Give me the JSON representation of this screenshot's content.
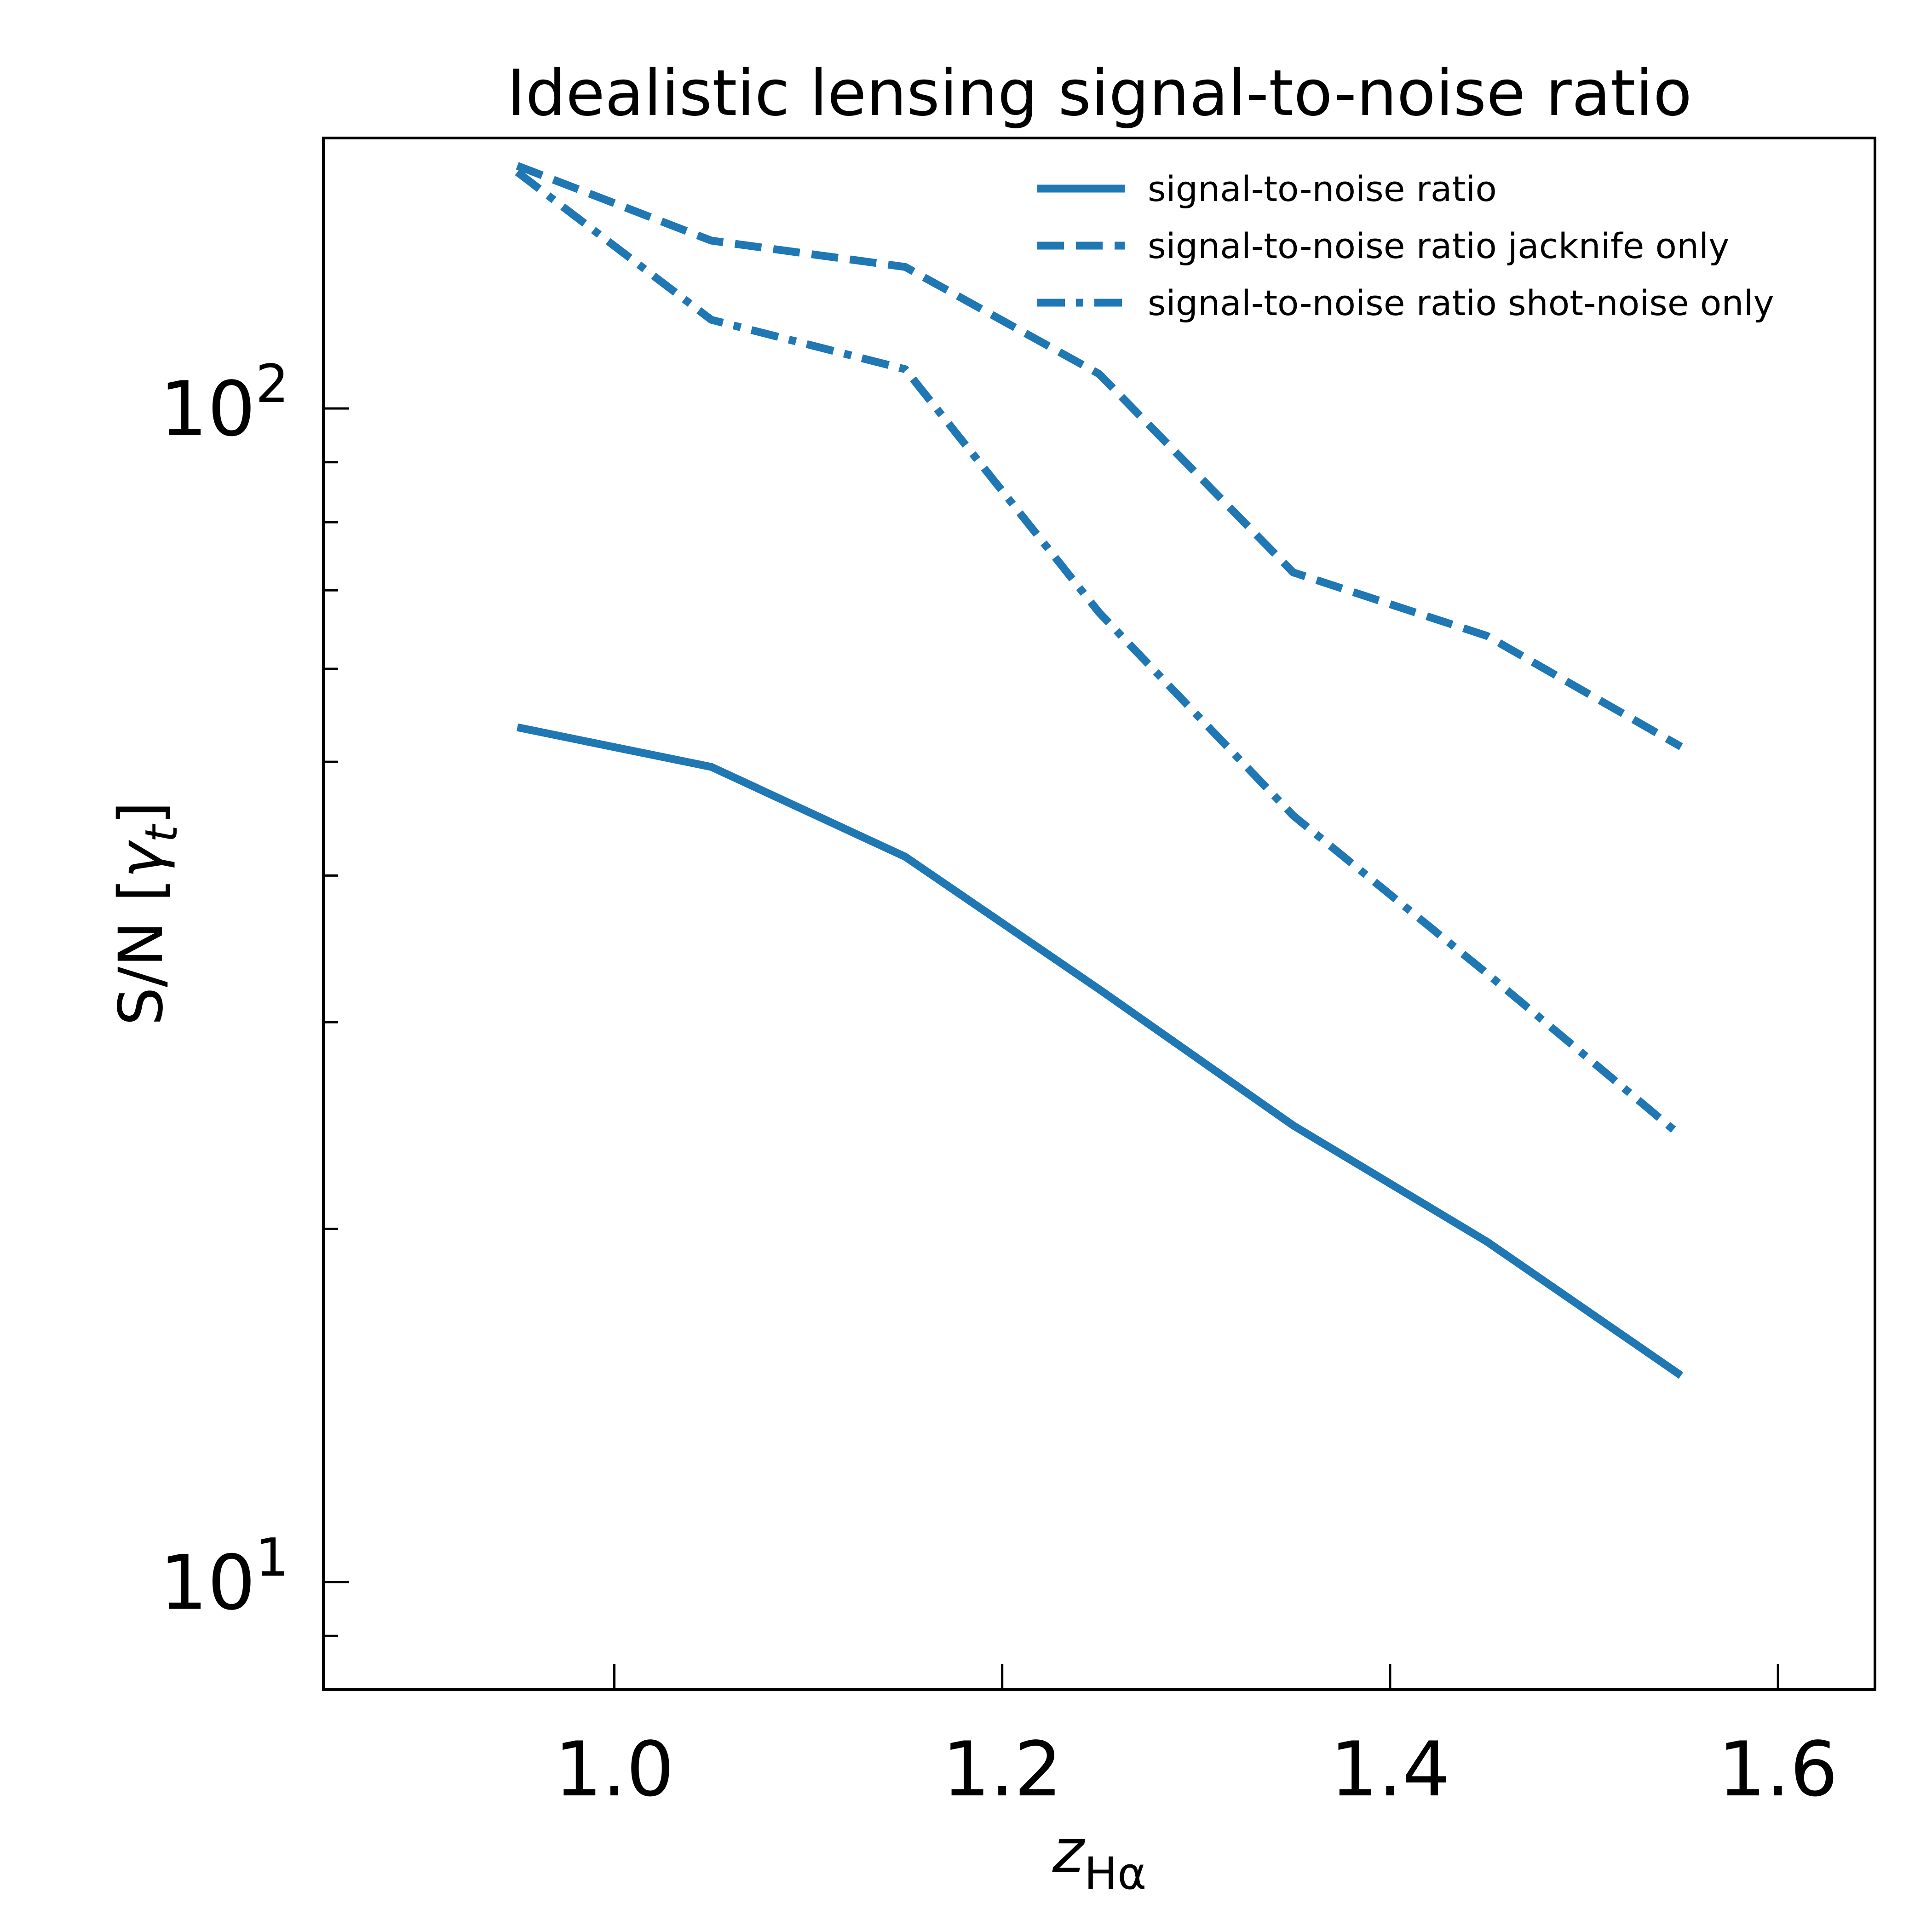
{
  "chart_data": {
    "type": "line",
    "title": "Idealistic lensing signal-to-noise ratio",
    "xlabel": "z",
    "xlabel_subscript": "Hα",
    "ylabel": "S/N [",
    "ylabel_symbol": "γ",
    "ylabel_symbol_subscript": "t",
    "ylabel_suffix": "]",
    "xlim": [
      0.85,
      1.65
    ],
    "ylim": [
      8.1,
      170
    ],
    "yscale": "log",
    "xticks": [
      1.0,
      1.2,
      1.4,
      1.6
    ],
    "xtick_labels": [
      "1.0",
      "1.2",
      "1.4",
      "1.6"
    ],
    "yticks_major": [
      10,
      100
    ],
    "ytick_labels": [
      {
        "base": "10",
        "exp": "1"
      },
      {
        "base": "10",
        "exp": "2"
      }
    ],
    "yticks_minor": [
      9,
      20,
      30,
      40,
      50,
      60,
      70,
      80,
      90
    ],
    "grid": false,
    "legend_position": "top-right",
    "x": [
      0.95,
      1.05,
      1.15,
      1.25,
      1.35,
      1.45,
      1.55
    ],
    "series": [
      {
        "name": "signal-to-noise ratio",
        "style": "solid",
        "color": "#1f77b4",
        "values": [
          53.5,
          49.5,
          41.5,
          32.0,
          24.5,
          19.5,
          15.0
        ]
      },
      {
        "name": "signal-to-noise ratio jacknife only",
        "style": "dashed",
        "color": "#1f77b4",
        "values": [
          161,
          139,
          132,
          107,
          72.5,
          64.0,
          51.5
        ]
      },
      {
        "name": "signal-to-noise ratio shot-noise only",
        "style": "dashdot",
        "color": "#1f77b4",
        "values": [
          159,
          119,
          108,
          67.0,
          45.0,
          33.0,
          24.0
        ]
      }
    ]
  }
}
